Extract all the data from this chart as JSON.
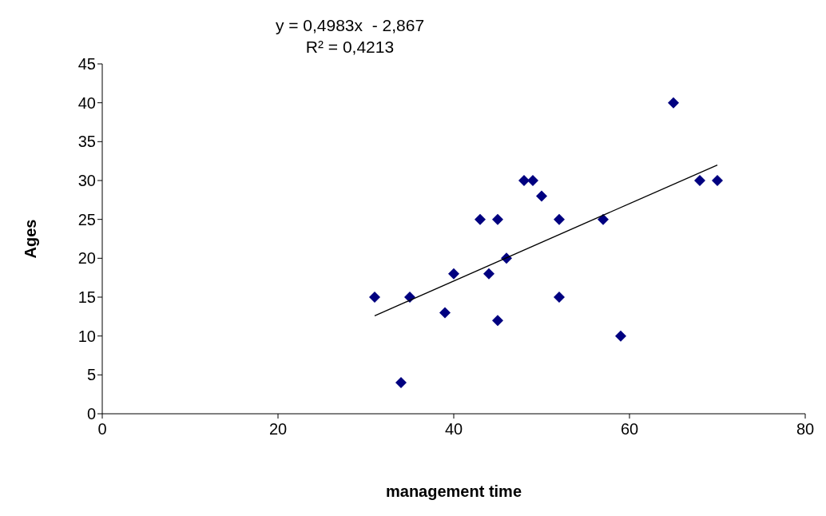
{
  "chart_data": {
    "type": "scatter",
    "xlabel": "management  time",
    "ylabel": "Ages",
    "annotations": [
      "y = 0,4983x  - 2,867",
      "R² = 0,4213"
    ],
    "xlim": [
      0,
      80
    ],
    "xticks": [
      0,
      20,
      40,
      60,
      80
    ],
    "ylim": [
      0,
      45
    ],
    "yticks": [
      0,
      5,
      10,
      15,
      20,
      25,
      30,
      35,
      40,
      45
    ],
    "marker": "diamond",
    "series": [
      {
        "color": "#000080",
        "x": [
          31,
          34,
          35,
          39,
          40,
          43,
          44,
          45,
          45,
          46,
          48,
          49,
          50,
          52,
          52,
          57,
          59,
          65,
          68,
          70
        ],
        "values": [
          15,
          4,
          15,
          13,
          18,
          25,
          18,
          25,
          12,
          20,
          30,
          30,
          28,
          25,
          15,
          25,
          10,
          40,
          30,
          30
        ]
      },
      {
        "type": "line",
        "color": "#000000",
        "marker": "none",
        "x": [
          31,
          70
        ],
        "values": [
          12.6,
          32.0
        ]
      }
    ]
  }
}
